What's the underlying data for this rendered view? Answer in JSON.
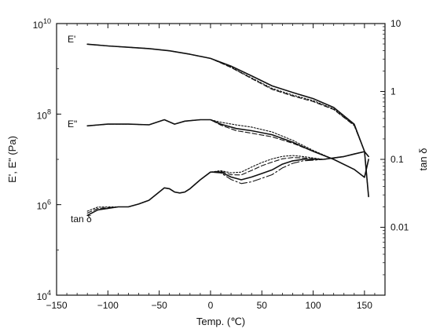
{
  "chart_data": {
    "type": "line",
    "xlabel": "Temp. (℃)",
    "ylabel": "E', E\" (Pa)",
    "y2label": "tan δ",
    "xlim": [
      -150,
      170
    ],
    "ylim": [
      10000,
      10000000000
    ],
    "y2lim": [
      0.001,
      10
    ],
    "yscale": "log",
    "y2scale": "log",
    "grid": false,
    "x_ticks": [
      -150,
      -100,
      -50,
      0,
      50,
      100,
      150
    ],
    "x_tick_labels": [
      "−150",
      "−100",
      "−50",
      "0",
      "50",
      "100",
      "150"
    ],
    "y_ticks": [
      10000,
      1000000,
      100000000,
      10000000000
    ],
    "y_tick_base": "10",
    "y_tick_exponents": [
      "4",
      "6",
      "8",
      "10"
    ],
    "y2_ticks": [
      0.01,
      0.1,
      1,
      10
    ],
    "y2_tick_labels": [
      "0.01",
      "0.1",
      "1",
      "10"
    ],
    "series": [
      {
        "name": "E'",
        "axis": "left",
        "x": [
          -120,
          -100,
          -80,
          -60,
          -40,
          -20,
          0,
          20,
          40,
          60,
          80,
          100,
          120,
          140,
          150,
          154
        ],
        "y": [
          3500000000.0,
          3200000000.0,
          3000000000.0,
          2800000000.0,
          2500000000.0,
          2100000000.0,
          1700000000.0,
          1150000000.0,
          700000000.0,
          420000000.0,
          300000000.0,
          220000000.0,
          140000000.0,
          60000000.0,
          15000000.0,
          1500000.0
        ],
        "variants": [
          [
            1,
            1,
            1,
            1,
            1,
            1,
            1,
            1,
            1,
            1,
            1,
            1,
            1,
            1,
            1,
            1
          ],
          [
            1,
            1,
            1,
            1,
            1,
            1,
            1,
            0.95,
            0.9,
            0.88,
            0.88,
            0.9,
            0.93,
            0.95,
            1,
            1
          ],
          [
            1,
            1,
            1,
            1,
            1,
            1,
            1,
            0.93,
            0.87,
            0.84,
            0.84,
            0.86,
            0.9,
            0.93,
            1,
            1
          ]
        ]
      },
      {
        "name": "E\"",
        "axis": "left",
        "x": [
          -120,
          -100,
          -80,
          -60,
          -45,
          -35,
          -25,
          -10,
          0,
          10,
          25,
          40,
          60,
          80,
          100,
          120,
          140,
          150,
          154
        ],
        "y": [
          55000000.0,
          60000000.0,
          60000000.0,
          58000000.0,
          75000000.0,
          60000000.0,
          70000000.0,
          75000000.0,
          75000000.0,
          60000000.0,
          48000000.0,
          43000000.0,
          35000000.0,
          24000000.0,
          15000000.0,
          10000000.0,
          6000000.0,
          4000000.0,
          10000000.0
        ],
        "variants": [
          [
            1,
            1,
            1,
            1,
            1,
            1,
            1,
            1,
            1,
            1,
            1,
            1,
            1,
            1,
            1,
            1,
            1,
            1,
            1
          ],
          [
            1,
            1,
            1,
            1,
            1,
            1,
            1,
            1,
            1,
            1.1,
            1.2,
            1.2,
            1.15,
            1.1,
            1.05,
            1,
            1,
            1,
            1
          ],
          [
            1,
            1,
            1,
            1,
            1,
            1,
            1,
            1,
            1,
            0.95,
            0.9,
            0.88,
            0.9,
            0.95,
            1,
            1,
            1,
            1,
            1
          ]
        ]
      },
      {
        "name": "tan δ",
        "axis": "right",
        "x": [
          -120,
          -110,
          -100,
          -90,
          -80,
          -70,
          -60,
          -50,
          -45,
          -40,
          -35,
          -30,
          -25,
          -20,
          -10,
          0,
          10,
          20,
          30,
          40,
          50,
          60,
          70,
          80,
          90,
          100,
          110,
          120,
          130,
          140,
          150,
          154
        ],
        "y": [
          0.015,
          0.018,
          0.019,
          0.02,
          0.02,
          0.022,
          0.025,
          0.033,
          0.038,
          0.037,
          0.033,
          0.032,
          0.033,
          0.037,
          0.05,
          0.065,
          0.065,
          0.055,
          0.05,
          0.055,
          0.062,
          0.07,
          0.085,
          0.095,
          0.1,
          0.1,
          0.1,
          0.105,
          0.11,
          0.12,
          0.13,
          0.11
        ],
        "variants": [
          [
            1,
            1,
            1,
            1,
            1,
            1,
            1,
            1,
            1,
            1,
            1,
            1,
            1,
            1,
            1,
            1,
            1,
            1,
            1,
            1,
            1,
            1,
            1,
            1,
            1,
            1,
            1,
            1,
            1,
            1,
            1,
            1
          ],
          [
            1.15,
            1.1,
            1.05,
            1,
            1,
            1,
            1,
            1,
            1,
            1,
            1,
            1,
            1,
            1,
            1,
            1,
            1.05,
            1.15,
            1.3,
            1.4,
            1.45,
            1.45,
            1.3,
            1.2,
            1.1,
            1.05,
            1,
            1,
            1,
            1,
            1,
            1
          ],
          [
            1.08,
            1.05,
            1.02,
            1,
            1,
            1,
            1,
            1,
            1,
            1,
            1,
            1,
            1,
            1,
            1,
            1,
            1.03,
            1.08,
            1.18,
            1.25,
            1.3,
            1.3,
            1.2,
            1.12,
            1.05,
            1.02,
            1,
            1,
            1,
            1,
            1,
            1
          ],
          [
            1,
            1,
            1,
            1,
            1,
            1,
            1,
            1,
            1,
            1,
            1,
            1,
            1,
            1,
            1,
            1,
            0.97,
            0.92,
            0.88,
            0.85,
            0.85,
            0.85,
            0.88,
            0.92,
            0.95,
            0.97,
            1,
            1,
            1,
            1,
            1,
            1
          ]
        ]
      }
    ]
  }
}
